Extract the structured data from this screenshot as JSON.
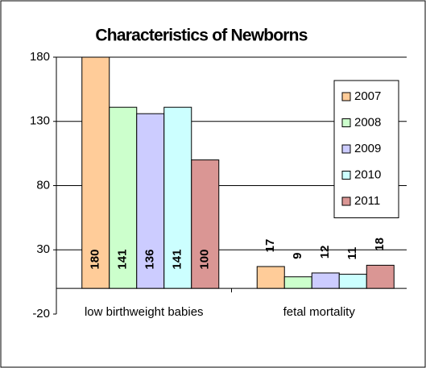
{
  "chart_data": {
    "type": "bar",
    "title": "Characteristics of Newborns",
    "categories": [
      "low birthweight babies",
      "fetal mortality"
    ],
    "series": [
      {
        "name": "2007",
        "color": "#FFCC99",
        "values": [
          180,
          17
        ]
      },
      {
        "name": "2008",
        "color": "#CCFFCC",
        "values": [
          141,
          9
        ]
      },
      {
        "name": "2009",
        "color": "#CCCCFF",
        "values": [
          136,
          12
        ]
      },
      {
        "name": "2010",
        "color": "#CCFFFF",
        "values": [
          141,
          11
        ]
      },
      {
        "name": "2011",
        "color": "#DA9694",
        "values": [
          100,
          18
        ]
      }
    ],
    "ylim": [
      -20,
      180
    ],
    "yticks": [
      -20,
      30,
      80,
      130,
      180
    ],
    "grid": true,
    "legend": "right"
  }
}
